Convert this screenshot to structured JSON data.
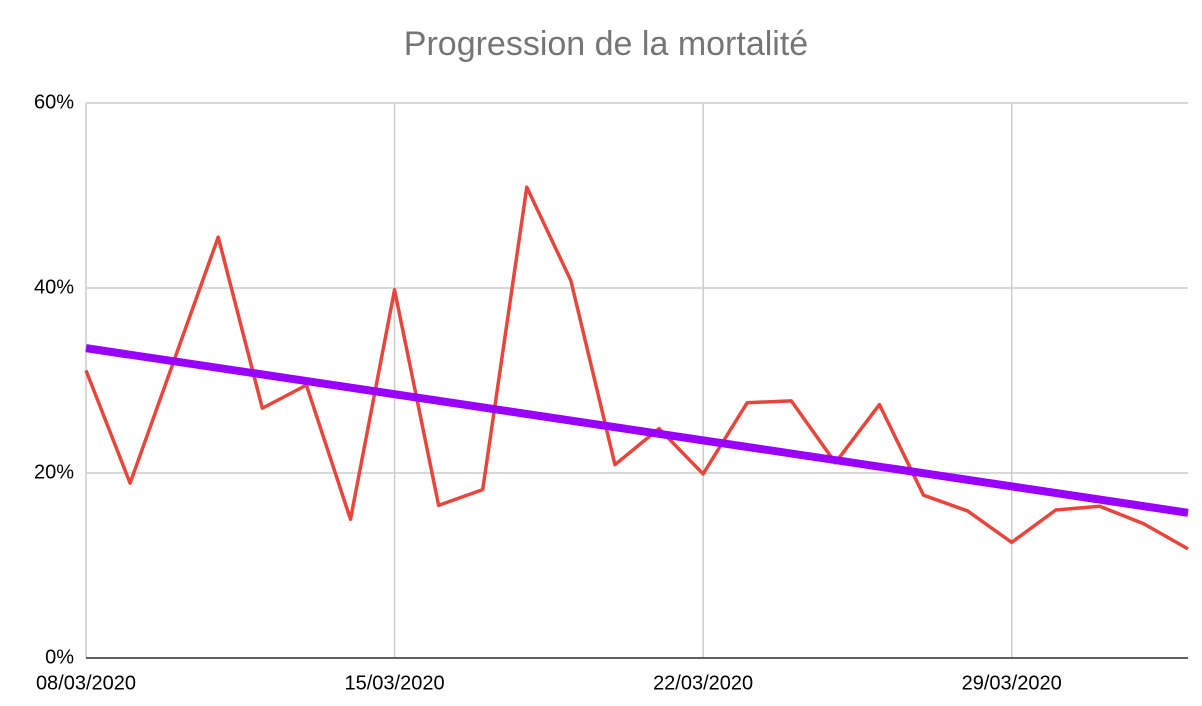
{
  "chart_data": {
    "type": "line",
    "title": "Progression de la mortalité",
    "categories": [
      "08/03/2020",
      null,
      null,
      null,
      null,
      null,
      null,
      "15/03/2020",
      null,
      null,
      null,
      null,
      null,
      null,
      "22/03/2020",
      null,
      null,
      null,
      null,
      null,
      null,
      "29/03/2020",
      null,
      null,
      null,
      null
    ],
    "series": [
      {
        "color": "#e8453c",
        "values": [
          31.1,
          18.9,
          32.2,
          45.5,
          27.0,
          29.5,
          15.0,
          39.8,
          16.5,
          18.2,
          50.9,
          40.8,
          20.9,
          24.8,
          19.9,
          27.6,
          27.8,
          21.1,
          27.4,
          17.6,
          15.9,
          12.5,
          16.0,
          16.4,
          14.5,
          11.8
        ]
      }
    ],
    "trendline": {
      "color": "#9900ff",
      "values": [
        33.5,
        15.7
      ]
    },
    "ylim": [
      0,
      60
    ],
    "yticks": [
      {
        "value": 0,
        "label": "0%"
      },
      {
        "value": 20,
        "label": "20%"
      },
      {
        "value": 40,
        "label": "40%"
      },
      {
        "value": 60,
        "label": "60%"
      }
    ],
    "grid": true
  }
}
